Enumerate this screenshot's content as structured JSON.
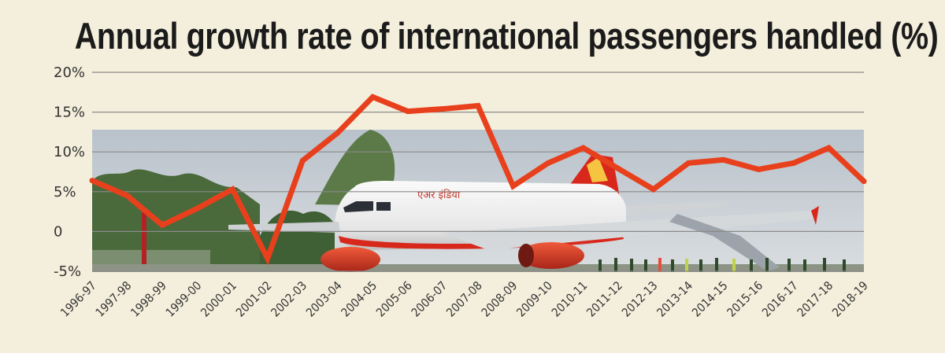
{
  "chart_data": {
    "type": "line",
    "title": "Annual growth rate of international passengers handled (%)",
    "xlabel": "",
    "ylabel": "",
    "ylim": [
      -5,
      20
    ],
    "yticks": [
      -5,
      0,
      5,
      10,
      15,
      20
    ],
    "ytick_labels": [
      "-5%",
      "0",
      "5%",
      "10%",
      "15%",
      "20%"
    ],
    "grid": true,
    "line_color": "#e8401c",
    "categories": [
      "1996-97",
      "1997-98",
      "1998-99",
      "1999-00",
      "2000-01",
      "2001-02",
      "2002-03",
      "2003-04",
      "2004-05",
      "2005-06",
      "2006-07",
      "2007-08",
      "2008-09",
      "2009-10",
      "2010-11",
      "2011-12",
      "2012-13",
      "2013-14",
      "2014-15",
      "2015-16",
      "2016-17",
      "2017-18",
      "2018-19"
    ],
    "series": [
      {
        "values": [
          6.4,
          4.5,
          0.8,
          2.9,
          5.3,
          -3.4,
          8.9,
          12.4,
          16.9,
          15.1,
          15.4,
          15.8,
          5.7,
          8.6,
          10.5,
          7.9,
          5.3,
          8.6,
          9.0,
          7.8,
          8.6,
          10.5,
          6.3
        ]
      }
    ]
  },
  "background_photo": {
    "subject": "airliner-on-tarmac",
    "fuselage_lettering": "एअर इंडिया"
  }
}
